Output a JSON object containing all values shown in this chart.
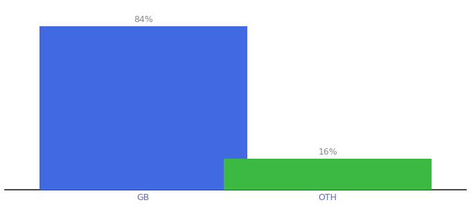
{
  "categories": [
    "GB",
    "OTH"
  ],
  "values": [
    84,
    16
  ],
  "bar_colors": [
    "#4169E1",
    "#3CB943"
  ],
  "labels": [
    "84%",
    "16%"
  ],
  "background_color": "#ffffff",
  "bar_width": 0.45,
  "x_positions": [
    0.3,
    0.7
  ],
  "xlim": [
    0.0,
    1.0
  ],
  "ylim": [
    0,
    95
  ],
  "label_fontsize": 9,
  "tick_fontsize": 9,
  "tick_color": "#5b6bbf",
  "label_color": "#888888",
  "spine_color": "#222222"
}
